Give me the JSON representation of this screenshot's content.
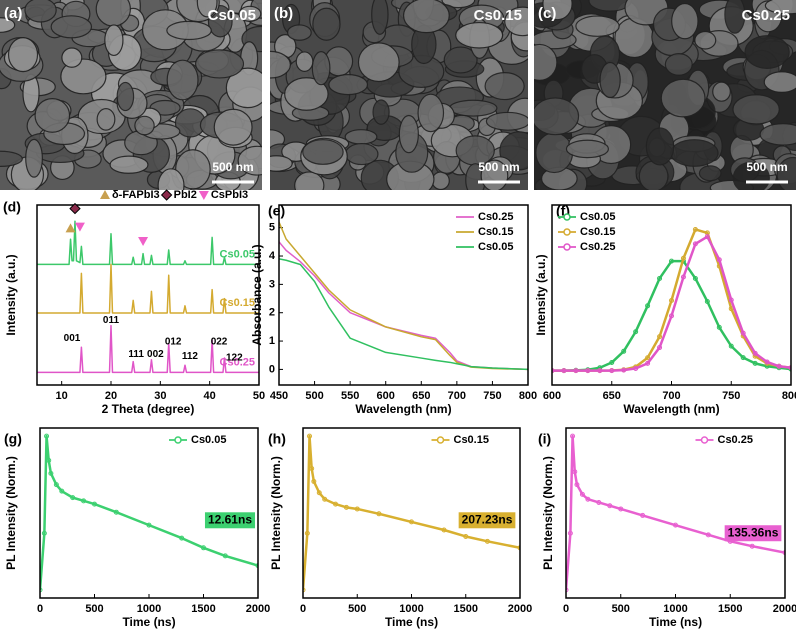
{
  "images": [
    {
      "label": "(a)",
      "sample": "Cs0.05",
      "scale_bar": "500 nm"
    },
    {
      "label": "(b)",
      "sample": "Cs0.15",
      "scale_bar": "500 nm"
    },
    {
      "label": "(c)",
      "sample": "Cs0.25",
      "scale_bar": "500 nm"
    }
  ],
  "chart_data": [
    {
      "type": "line",
      "panel": "(d)",
      "x_label": "2 Theta (degree)",
      "y_label": "Intensity (a.u.)",
      "xlim": [
        5,
        50
      ],
      "xticks": [
        10,
        20,
        30,
        40,
        50
      ],
      "ylim": [
        0,
        10
      ],
      "legend": "series-labels",
      "x": [
        5,
        11.5,
        11.8,
        12.1,
        12.4,
        12.7,
        13.0,
        13.7,
        14.0,
        14.3,
        19.7,
        20.0,
        20.3,
        24.2,
        24.5,
        24.8,
        26.2,
        26.5,
        26.8,
        27.9,
        28.2,
        28.5,
        31.4,
        31.7,
        32.0,
        34.7,
        35.0,
        35.3,
        40.2,
        40.5,
        40.8,
        42.7,
        43.0,
        43.3,
        50
      ],
      "series": [
        {
          "name": "Cs0.05",
          "color": "#3cc86a",
          "values": [
            6.7,
            6.7,
            8.1,
            6.9,
            6.9,
            9.1,
            6.9,
            6.8,
            7.7,
            6.7,
            6.7,
            8.4,
            6.7,
            6.7,
            7.1,
            6.7,
            6.7,
            7.3,
            6.7,
            6.7,
            7.2,
            6.7,
            6.7,
            7.5,
            6.7,
            6.7,
            6.9,
            6.7,
            6.7,
            8.2,
            6.7,
            6.7,
            7.1,
            6.7,
            6.7
          ]
        },
        {
          "name": "Cs0.15",
          "color": "#d4aa30",
          "values": [
            4.0,
            4.0,
            4.0,
            4.0,
            4.0,
            4.0,
            4.0,
            4.0,
            6.2,
            4.0,
            4.0,
            6.7,
            4.0,
            4.0,
            4.7,
            4.0,
            4.0,
            4.0,
            4.0,
            4.0,
            5.2,
            4.0,
            4.0,
            6.1,
            4.0,
            4.0,
            4.4,
            4.0,
            4.0,
            5.3,
            4.0,
            4.0,
            4.8,
            4.0,
            4.0
          ]
        },
        {
          "name": "Cs0.25",
          "color": "#e055c8",
          "values": [
            0.7,
            0.7,
            0.7,
            0.7,
            0.7,
            0.7,
            0.7,
            0.7,
            2.1,
            0.7,
            0.7,
            3.3,
            0.7,
            0.7,
            1.3,
            0.7,
            0.7,
            0.7,
            0.7,
            0.7,
            1.4,
            0.7,
            0.7,
            2.3,
            0.7,
            0.7,
            1.1,
            0.7,
            0.7,
            2.5,
            0.7,
            0.7,
            1.5,
            0.7,
            0.7
          ]
        }
      ],
      "phases": [
        {
          "name": "δ-FAPbI3",
          "color": "#c8a050",
          "marker": "triangle",
          "x": [
            11.8
          ],
          "y": [
            8.7
          ]
        },
        {
          "name": "PbI2",
          "color": "#8a2a4a",
          "marker": "diamond",
          "x": [
            12.7
          ],
          "y": [
            9.8
          ]
        },
        {
          "name": "CsPbI3",
          "color": "#f060c8",
          "marker": "triangle-down",
          "x": [
            13.7,
            26.5
          ],
          "y": [
            8.8,
            8.0
          ]
        }
      ],
      "peak_labels": [
        {
          "label": "001",
          "x": 12.1,
          "y": 2.6
        },
        {
          "label": "011",
          "x": 20,
          "y": 3.6
        },
        {
          "label": "111",
          "x": 25.1,
          "y": 1.7
        },
        {
          "label": "002",
          "x": 29,
          "y": 1.7
        },
        {
          "label": "012",
          "x": 32.6,
          "y": 2.4
        },
        {
          "label": "112",
          "x": 36,
          "y": 1.6
        },
        {
          "label": "022",
          "x": 41.9,
          "y": 2.4
        },
        {
          "label": "122",
          "x": 45,
          "y": 1.5
        }
      ]
    },
    {
      "type": "line",
      "panel": "(e)",
      "x_label": "Wavelength (nm)",
      "y_label": "Absorbance (a.u.)",
      "xlim": [
        450,
        800
      ],
      "xticks": [
        450,
        500,
        550,
        600,
        650,
        700,
        750,
        800
      ],
      "ylim": [
        -0.55,
        5.8
      ],
      "yticks": [
        0,
        1,
        2,
        3,
        4,
        5
      ],
      "legend": "upper right",
      "x": [
        450,
        460,
        480,
        500,
        520,
        550,
        600,
        650,
        670,
        690,
        700,
        720,
        750,
        800
      ],
      "series": [
        {
          "name": "Cs0.25",
          "color": "#e060c8",
          "values": [
            4.5,
            4.2,
            3.8,
            3.3,
            2.7,
            2.0,
            1.5,
            1.2,
            1.1,
            0.6,
            0.3,
            0.1,
            0.05,
            0
          ]
        },
        {
          "name": "Cs0.15",
          "color": "#c8a830",
          "values": [
            5.2,
            4.6,
            4.0,
            3.4,
            2.8,
            2.1,
            1.5,
            1.15,
            1.05,
            0.5,
            0.25,
            0.08,
            0.03,
            0
          ]
        },
        {
          "name": "Cs0.05",
          "color": "#30c060",
          "values": [
            3.9,
            3.85,
            3.7,
            3.1,
            2.2,
            1.1,
            0.6,
            0.4,
            0.32,
            0.25,
            0.2,
            0.1,
            0.05,
            0
          ]
        }
      ]
    },
    {
      "type": "line",
      "panel": "(f)",
      "x_label": "Wavelength (nm)",
      "y_label": "Intensity (a.u.)",
      "xlim": [
        600,
        800
      ],
      "xticks": [
        600,
        650,
        700,
        750,
        800
      ],
      "ylim": [
        -0.1,
        1.15
      ],
      "legend": "upper left",
      "marker": "circle",
      "x": [
        600,
        610,
        620,
        630,
        640,
        650,
        660,
        670,
        680,
        690,
        700,
        710,
        720,
        730,
        740,
        750,
        760,
        770,
        780,
        790,
        800
      ],
      "series": [
        {
          "name": "Cs0.05",
          "color": "#30c060",
          "values": [
            0,
            0,
            0.002,
            0.006,
            0.02,
            0.056,
            0.134,
            0.27,
            0.45,
            0.64,
            0.76,
            0.76,
            0.64,
            0.48,
            0.3,
            0.17,
            0.09,
            0.05,
            0.03,
            0.02,
            0.01
          ]
        },
        {
          "name": "Cs0.15",
          "color": "#d4aa30",
          "values": [
            0,
            0,
            0,
            0,
            0,
            0.001,
            0.006,
            0.026,
            0.089,
            0.236,
            0.487,
            0.78,
            0.98,
            0.956,
            0.726,
            0.43,
            0.24,
            0.1,
            0.05,
            0.03,
            0.02
          ]
        },
        {
          "name": "Cs0.25",
          "color": "#e055c8",
          "values": [
            0,
            0,
            0,
            0,
            0,
            0,
            0.003,
            0.015,
            0.05,
            0.16,
            0.38,
            0.65,
            0.88,
            0.93,
            0.77,
            0.49,
            0.26,
            0.12,
            0.06,
            0.03,
            0.02
          ]
        }
      ]
    },
    {
      "type": "line",
      "panel": "(g)",
      "x_label": "Time (ns)",
      "y_label": "PL Intensity (Norm.)",
      "xlim": [
        0,
        2000
      ],
      "xticks": [
        0,
        500,
        1000,
        1500,
        2000
      ],
      "ylim": [
        0,
        1.05
      ],
      "legend": "upper center",
      "marker": "circle",
      "x": [
        0,
        40,
        60,
        80,
        100,
        150,
        200,
        300,
        400,
        500,
        700,
        1000,
        1300,
        1500,
        1700,
        2000
      ],
      "series": [
        {
          "name": "Cs0.05",
          "color": "#3cd070",
          "values": [
            0.05,
            0.4,
            1.0,
            0.85,
            0.77,
            0.7,
            0.66,
            0.62,
            0.6,
            0.58,
            0.53,
            0.45,
            0.37,
            0.31,
            0.26,
            0.2
          ]
        }
      ],
      "annotation": {
        "text": "12.61ns",
        "x": 1743,
        "y": 0.48
      }
    },
    {
      "type": "line",
      "panel": "(h)",
      "x_label": "Time (ns)",
      "y_label": "PL Intensity (Norm.)",
      "xlim": [
        0,
        2000
      ],
      "xticks": [
        0,
        500,
        1000,
        1500,
        2000
      ],
      "ylim": [
        0,
        1.05
      ],
      "legend": "upper center",
      "marker": "circle",
      "x": [
        0,
        40,
        60,
        80,
        100,
        150,
        200,
        300,
        400,
        500,
        700,
        1000,
        1300,
        1500,
        1700,
        2000
      ],
      "series": [
        {
          "name": "Cs0.15",
          "color": "#d8b030",
          "values": [
            0.05,
            0.4,
            1.0,
            0.8,
            0.72,
            0.65,
            0.61,
            0.58,
            0.56,
            0.55,
            0.52,
            0.47,
            0.42,
            0.38,
            0.35,
            0.31
          ]
        }
      ],
      "annotation": {
        "text": "207.23ns",
        "x": 1696,
        "y": 0.48
      }
    },
    {
      "type": "line",
      "panel": "(i)",
      "x_label": "Time (ns)",
      "y_label": "PL Intensity (Norm.)",
      "xlim": [
        0,
        2000
      ],
      "xticks": [
        0,
        500,
        1000,
        1500,
        2000
      ],
      "ylim": [
        0,
        1.05
      ],
      "legend": "upper center",
      "marker": "circle",
      "x": [
        0,
        40,
        60,
        80,
        100,
        150,
        200,
        300,
        400,
        500,
        700,
        1000,
        1300,
        1500,
        1700,
        2000
      ],
      "series": [
        {
          "name": "Cs0.25",
          "color": "#e860d0",
          "values": [
            0.05,
            0.4,
            1.0,
            0.78,
            0.7,
            0.64,
            0.61,
            0.59,
            0.57,
            0.55,
            0.51,
            0.45,
            0.39,
            0.35,
            0.32,
            0.28
          ]
        }
      ],
      "annotation": {
        "text": "135.36ns",
        "x": 1708,
        "y": 0.4
      }
    }
  ]
}
